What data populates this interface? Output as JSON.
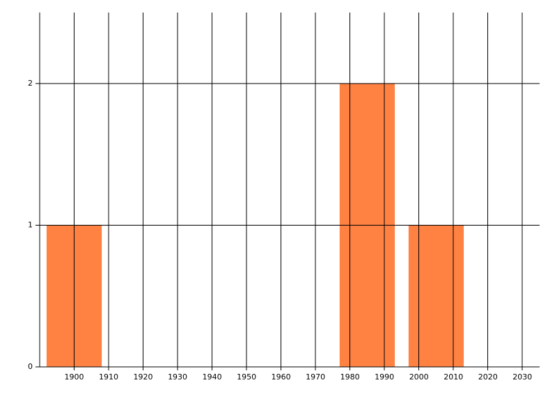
{
  "chart_data": {
    "type": "bar",
    "x": [
      1900,
      1985,
      2005
    ],
    "values": [
      1,
      2,
      1
    ],
    "color": "#ff8243",
    "xlim": [
      1890,
      2035
    ],
    "xticks": [
      1900,
      1910,
      1920,
      1930,
      1940,
      1950,
      1960,
      1970,
      1980,
      1990,
      2000,
      2010,
      2020,
      2030
    ],
    "ylim": [
      0,
      2.5
    ],
    "yticks": [
      0,
      1,
      2
    ],
    "grid": true
  }
}
